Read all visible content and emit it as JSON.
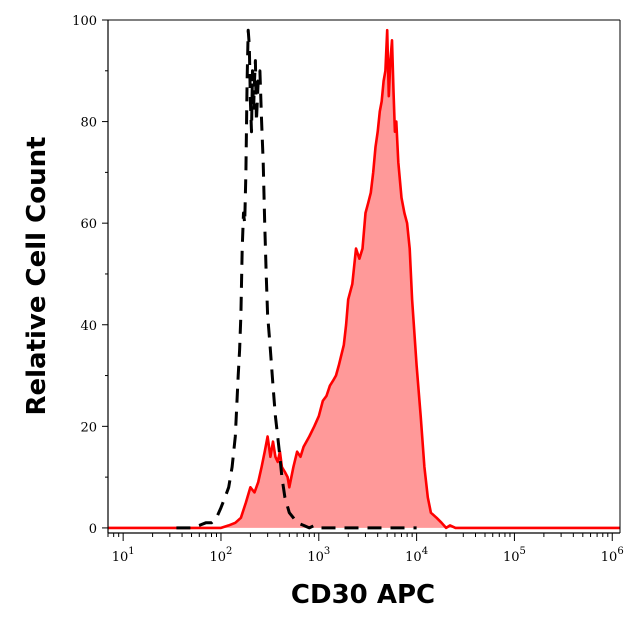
{
  "chart_data": {
    "type": "area",
    "xlabel": "CD30 APC",
    "ylabel": "Relative Cell Count",
    "x_scale": "log",
    "xlim": [
      7,
      1200000
    ],
    "ylim": [
      -1,
      100
    ],
    "x_ticks": [
      {
        "value": 10,
        "base": "10",
        "exp": "1"
      },
      {
        "value": 100,
        "base": "10",
        "exp": "2"
      },
      {
        "value": 1000,
        "base": "10",
        "exp": "3"
      },
      {
        "value": 10000,
        "base": "10",
        "exp": "4"
      },
      {
        "value": 100000,
        "base": "10",
        "exp": "5"
      },
      {
        "value": 1000000,
        "base": "10",
        "exp": "6"
      }
    ],
    "y_ticks": [
      0,
      20,
      40,
      60,
      80,
      100
    ],
    "grid": false,
    "legend": "none",
    "series": [
      {
        "style": "dashed",
        "color": "#000000",
        "x": [
          35,
          50,
          60,
          70,
          80,
          90,
          100,
          110,
          120,
          130,
          140,
          150,
          155,
          160,
          165,
          170,
          175,
          180,
          185,
          190,
          195,
          200,
          205,
          210,
          215,
          220,
          225,
          230,
          240,
          250,
          260,
          270,
          280,
          290,
          300,
          320,
          340,
          360,
          380,
          400,
          420,
          450,
          500,
          550,
          600,
          700,
          800,
          900,
          1000,
          1500,
          2000,
          3000,
          5000,
          10000
        ],
        "y": [
          0,
          0,
          0.5,
          1,
          1,
          2,
          4,
          6,
          8,
          12,
          18,
          30,
          35,
          42,
          55,
          62,
          60,
          70,
          88,
          98,
          95,
          84,
          78,
          90,
          82,
          88,
          92,
          80,
          88,
          90,
          80,
          72,
          60,
          50,
          42,
          35,
          28,
          22,
          18,
          14,
          10,
          6,
          3,
          2,
          1,
          0.5,
          0,
          0.5,
          0,
          0,
          0,
          0,
          0,
          0
        ]
      },
      {
        "style": "filled",
        "color": "#ff0000",
        "fill": "#ff9999",
        "x": [
          7,
          100,
          120,
          140,
          160,
          180,
          200,
          220,
          240,
          260,
          280,
          300,
          320,
          340,
          360,
          380,
          400,
          420,
          450,
          480,
          500,
          550,
          600,
          650,
          700,
          800,
          900,
          1000,
          1100,
          1200,
          1300,
          1400,
          1500,
          1600,
          1700,
          1800,
          1900,
          2000,
          2200,
          2400,
          2600,
          2800,
          3000,
          3200,
          3400,
          3600,
          3800,
          4000,
          4200,
          4400,
          4600,
          4800,
          5000,
          5200,
          5400,
          5600,
          5800,
          6000,
          6200,
          6500,
          7000,
          7500,
          8000,
          8500,
          9000,
          10000,
          11000,
          12000,
          13000,
          14000,
          16000,
          18000,
          20000,
          22000,
          25000,
          28000,
          32000,
          40000,
          1200000
        ],
        "y": [
          0,
          0,
          0.5,
          1,
          2,
          5,
          8,
          7,
          9,
          12,
          15,
          18,
          14,
          17,
          14,
          13,
          15,
          12,
          11,
          10,
          8,
          12,
          15,
          14,
          16,
          18,
          20,
          22,
          25,
          26,
          28,
          29,
          30,
          32,
          34,
          36,
          40,
          45,
          48,
          55,
          53,
          55,
          62,
          64,
          66,
          70,
          75,
          78,
          82,
          84,
          88,
          90,
          98,
          85,
          92,
          96,
          86,
          78,
          80,
          72,
          65,
          62,
          60,
          55,
          45,
          32,
          22,
          12,
          6,
          3,
          2,
          1,
          0,
          0.5,
          0,
          0,
          0,
          0,
          0
        ]
      }
    ]
  }
}
